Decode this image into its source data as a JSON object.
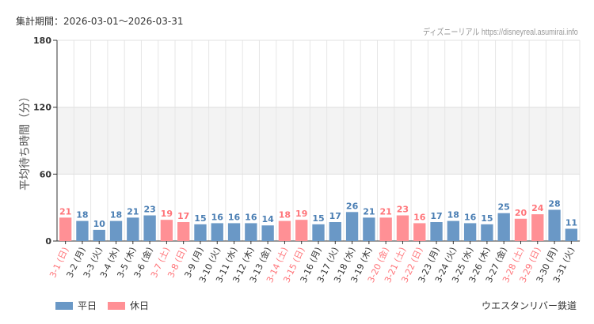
{
  "header": {
    "period": "集計期間：2026-03-01～2026-03-31",
    "credit": "ディズニーリアル https://disneyreal.asumirai.info"
  },
  "legend": {
    "weekday": "平日",
    "holiday": "休日"
  },
  "attraction": "ウエスタンリバー鉄道",
  "colors": {
    "weekday": "#6a98c6",
    "holiday": "#ff9095",
    "weekday_label": "#4a7eb3",
    "holiday_label": "#ff7479",
    "band": "#f3f3f3"
  },
  "chart_data": {
    "type": "bar",
    "ylabel": "平均待ち時間（分）",
    "ylim": [
      0,
      180
    ],
    "yticks": [
      0,
      60,
      120,
      180
    ],
    "shaded_band": [
      60,
      120
    ],
    "grid": true,
    "categories": [
      "3-1 (日)",
      "3-2 (月)",
      "3-3 (火)",
      "3-4 (水)",
      "3-5 (木)",
      "3-6 (金)",
      "3-7 (土)",
      "3-8 (日)",
      "3-9 (月)",
      "3-10 (火)",
      "3-11 (水)",
      "3-12 (木)",
      "3-13 (金)",
      "3-14 (土)",
      "3-15 (日)",
      "3-16 (月)",
      "3-17 (火)",
      "3-18 (水)",
      "3-19 (木)",
      "3-20 (金)",
      "3-21 (土)",
      "3-22 (日)",
      "3-23 (月)",
      "3-24 (火)",
      "3-25 (水)",
      "3-26 (木)",
      "3-27 (金)",
      "3-28 (土)",
      "3-29 (日)",
      "3-30 (月)",
      "3-31 (火)"
    ],
    "values": [
      21,
      18,
      10,
      18,
      21,
      23,
      19,
      17,
      15,
      16,
      16,
      16,
      14,
      18,
      19,
      15,
      17,
      26,
      21,
      21,
      23,
      16,
      17,
      18,
      16,
      15,
      25,
      20,
      24,
      28,
      11
    ],
    "holiday": [
      true,
      false,
      false,
      false,
      false,
      false,
      true,
      true,
      false,
      false,
      false,
      false,
      false,
      true,
      true,
      false,
      false,
      false,
      false,
      true,
      true,
      true,
      false,
      false,
      false,
      false,
      false,
      true,
      true,
      false,
      false
    ]
  }
}
